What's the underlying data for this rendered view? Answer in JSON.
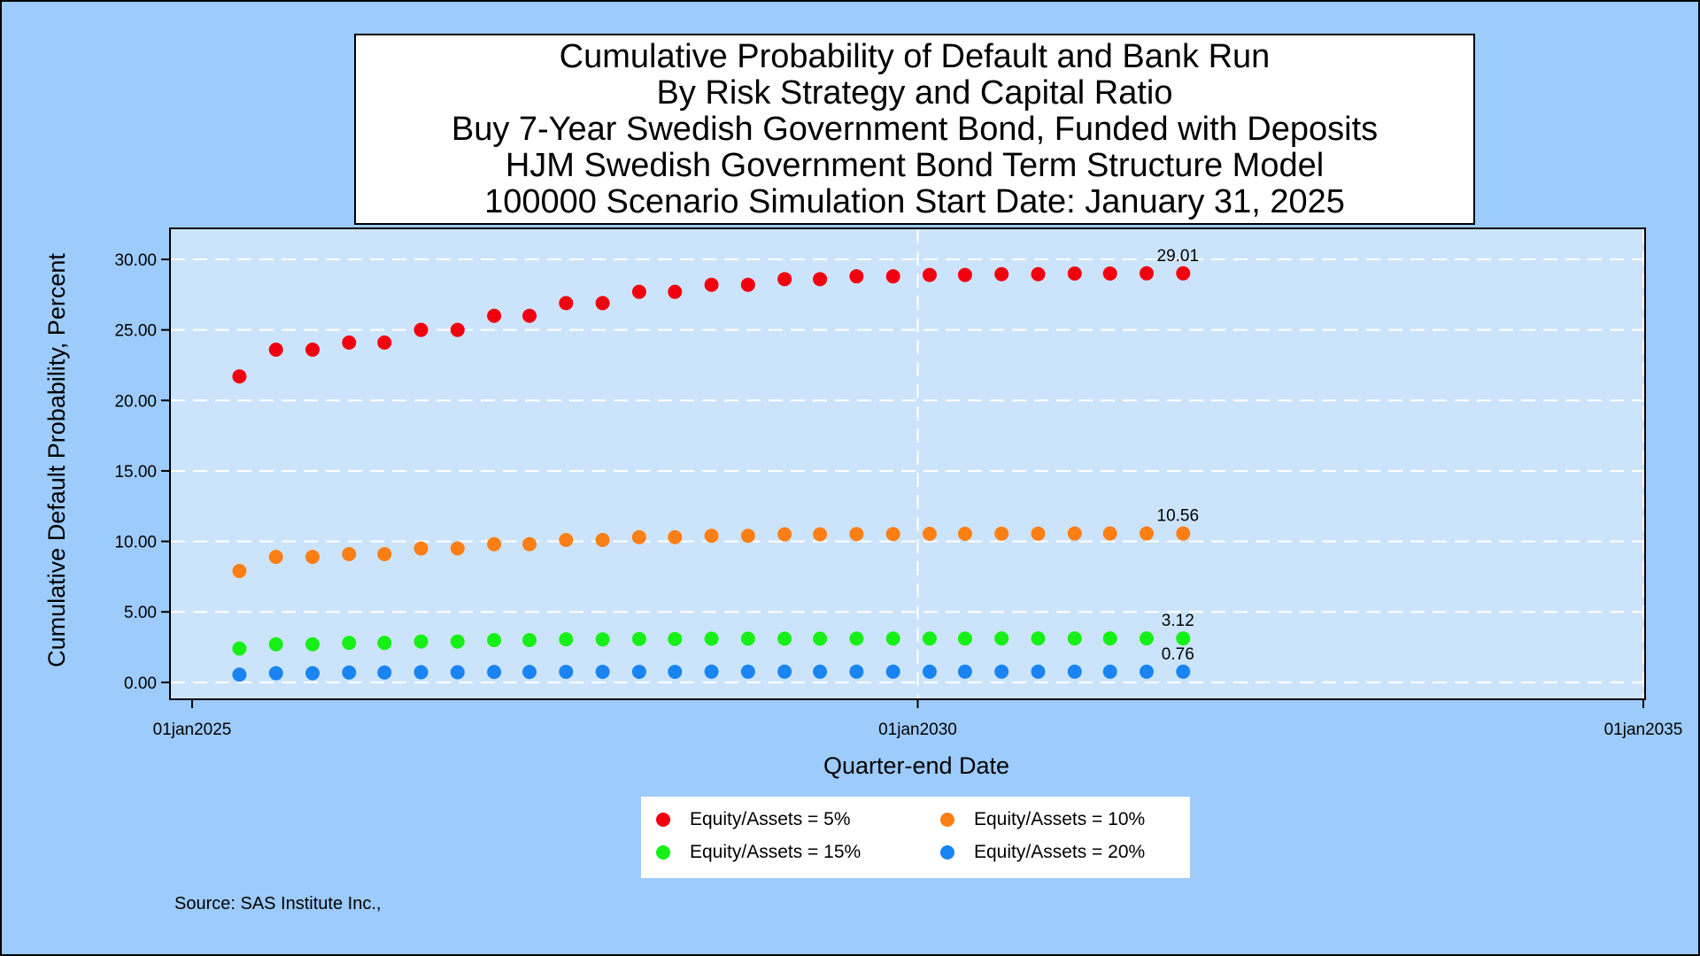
{
  "title_lines": [
    "Cumulative Probability of Default and Bank Run",
    "By Risk Strategy and Capital Ratio",
    "Buy 7-Year Swedish Government Bond, Funded with Deposits",
    "HJM Swedish Government Bond Term Structure Model",
    "100000 Scenario Simulation Start Date: January 31, 2025"
  ],
  "source": "Source: SAS Institute Inc.,",
  "colors": {
    "page_background": "#9dcbfb",
    "plot_background": "#cce4fb",
    "gridline": "#ffffff"
  },
  "chart_data": {
    "type": "scatter",
    "xlabel": "Quarter-end Date",
    "ylabel": "Cumulative Default Probability, Percent",
    "x_ticks": [
      "01jan2025",
      "01jan2030",
      "01jan2035"
    ],
    "xlim": [
      "01jan2025",
      "01jan2035"
    ],
    "y_ticks": [
      "0.00",
      "5.00",
      "10.00",
      "15.00",
      "20.00",
      "25.00",
      "30.00"
    ],
    "ylim": [
      -1.2,
      32.2
    ],
    "grid": true,
    "legend_position": "bottom",
    "x": [
      "2025-04-30",
      "2025-07-31",
      "2025-10-31",
      "2026-01-31",
      "2026-04-30",
      "2026-07-31",
      "2026-10-31",
      "2027-01-31",
      "2027-04-30",
      "2027-07-31",
      "2027-10-31",
      "2028-01-31",
      "2028-04-30",
      "2028-07-31",
      "2028-10-31",
      "2029-01-31",
      "2029-04-30",
      "2029-07-31",
      "2029-10-31",
      "2030-01-31",
      "2030-04-30",
      "2030-07-31",
      "2030-10-31",
      "2031-01-31",
      "2031-04-30",
      "2031-07-31",
      "2031-10-31"
    ],
    "series": [
      {
        "name": "Equity/Assets = 5%",
        "color": "#f10010",
        "end_label": "29.01",
        "values": [
          21.7,
          23.6,
          23.6,
          24.1,
          24.1,
          25.0,
          25.0,
          26.0,
          26.0,
          26.9,
          26.9,
          27.7,
          27.7,
          28.2,
          28.2,
          28.6,
          28.6,
          28.8,
          28.8,
          28.9,
          28.9,
          28.95,
          28.95,
          29.0,
          29.0,
          29.01,
          29.01
        ]
      },
      {
        "name": "Equity/Assets = 10%",
        "color": "#fc7f16",
        "end_label": "10.56",
        "values": [
          7.9,
          8.9,
          8.9,
          9.1,
          9.1,
          9.5,
          9.5,
          9.8,
          9.8,
          10.1,
          10.1,
          10.3,
          10.3,
          10.4,
          10.4,
          10.5,
          10.5,
          10.52,
          10.52,
          10.54,
          10.54,
          10.55,
          10.55,
          10.56,
          10.56,
          10.56,
          10.56
        ]
      },
      {
        "name": "Equity/Assets = 15%",
        "color": "#16f016",
        "end_label": "3.12",
        "values": [
          2.4,
          2.7,
          2.7,
          2.8,
          2.8,
          2.9,
          2.9,
          3.0,
          3.0,
          3.05,
          3.05,
          3.08,
          3.08,
          3.1,
          3.1,
          3.1,
          3.1,
          3.11,
          3.11,
          3.11,
          3.11,
          3.12,
          3.12,
          3.12,
          3.12,
          3.12,
          3.12
        ]
      },
      {
        "name": "Equity/Assets = 20%",
        "color": "#1984f2",
        "end_label": "0.76",
        "values": [
          0.55,
          0.65,
          0.65,
          0.7,
          0.7,
          0.72,
          0.72,
          0.74,
          0.74,
          0.75,
          0.75,
          0.75,
          0.75,
          0.76,
          0.76,
          0.76,
          0.76,
          0.76,
          0.76,
          0.76,
          0.76,
          0.76,
          0.76,
          0.76,
          0.76,
          0.76,
          0.76
        ]
      }
    ]
  },
  "legend": {
    "items": [
      {
        "label": "Equity/Assets = 5%",
        "color": "#f10010"
      },
      {
        "label": "Equity/Assets = 10%",
        "color": "#fc7f16"
      },
      {
        "label": "Equity/Assets = 15%",
        "color": "#16f016"
      },
      {
        "label": "Equity/Assets = 20%",
        "color": "#1984f2"
      }
    ]
  }
}
